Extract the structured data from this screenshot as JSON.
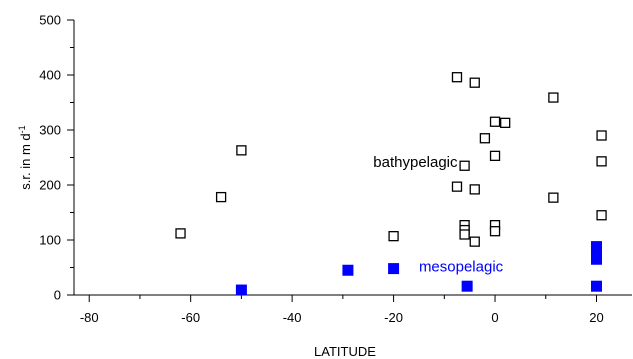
{
  "chart_data": {
    "type": "scatter",
    "xlabel": "LATITUDE",
    "ylabel": {
      "main": "s.r. in m d",
      "superscript": "-1"
    },
    "xlim": [
      -83,
      27
    ],
    "ylim": [
      0,
      500
    ],
    "xticks": [
      -80,
      -60,
      -40,
      -20,
      0,
      20
    ],
    "yticks": [
      0,
      100,
      200,
      300,
      400,
      500
    ],
    "grid": false,
    "series": [
      {
        "name": "bathypelagic",
        "marker": "open-square",
        "color": "#000000",
        "points": [
          {
            "x": -62,
            "y": 112
          },
          {
            "x": -54,
            "y": 178
          },
          {
            "x": -50,
            "y": 263
          },
          {
            "x": -20,
            "y": 107
          },
          {
            "x": -7.5,
            "y": 396
          },
          {
            "x": -7.5,
            "y": 197
          },
          {
            "x": -6,
            "y": 235
          },
          {
            "x": -6,
            "y": 127
          },
          {
            "x": -6,
            "y": 118
          },
          {
            "x": -6,
            "y": 110
          },
          {
            "x": -4,
            "y": 386
          },
          {
            "x": -4,
            "y": 192
          },
          {
            "x": -4,
            "y": 97
          },
          {
            "x": -2,
            "y": 285
          },
          {
            "x": 0,
            "y": 315
          },
          {
            "x": 0,
            "y": 253
          },
          {
            "x": 0,
            "y": 127
          },
          {
            "x": 0,
            "y": 116
          },
          {
            "x": 2,
            "y": 313
          },
          {
            "x": 11.5,
            "y": 359
          },
          {
            "x": 11.5,
            "y": 177
          },
          {
            "x": 21,
            "y": 290
          },
          {
            "x": 21,
            "y": 243
          },
          {
            "x": 21,
            "y": 145
          }
        ]
      },
      {
        "name": "mesopelagic",
        "marker": "filled-square",
        "color": "#0000ff",
        "points": [
          {
            "x": -50,
            "y": 9
          },
          {
            "x": -29,
            "y": 45
          },
          {
            "x": -20,
            "y": 48
          },
          {
            "x": -5.5,
            "y": 16
          },
          {
            "x": 20,
            "y": 88
          },
          {
            "x": 20,
            "y": 80
          },
          {
            "x": 20,
            "y": 73
          },
          {
            "x": 20,
            "y": 65
          },
          {
            "x": 20,
            "y": 16
          }
        ]
      }
    ],
    "annotations": [
      {
        "text": "bathypelagic",
        "x": -24,
        "y": 233,
        "color": "#000000"
      },
      {
        "text": "mesopelagic",
        "x": -15,
        "y": 43,
        "color": "#0000ff"
      }
    ]
  }
}
